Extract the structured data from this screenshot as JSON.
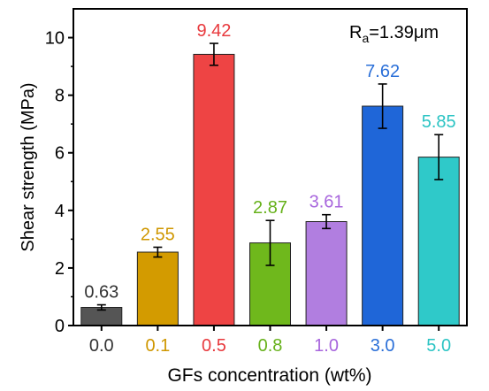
{
  "chart_data": {
    "type": "bar",
    "categories": [
      "0.0",
      "0.1",
      "0.5",
      "0.8",
      "1.0",
      "3.0",
      "5.0"
    ],
    "values": [
      0.63,
      2.55,
      9.42,
      2.87,
      3.61,
      7.62,
      5.85
    ],
    "errors": [
      0.09,
      0.17,
      0.38,
      0.78,
      0.24,
      0.77,
      0.78
    ],
    "value_labels": [
      "0.63",
      "2.55",
      "9.42",
      "2.87",
      "3.61",
      "7.62",
      "5.85"
    ],
    "colors": [
      "#555555",
      "#d39b00",
      "#ee4444",
      "#6fb81c",
      "#b17ee0",
      "#1f66d8",
      "#2fc9c9"
    ],
    "label_colors": [
      "#333333",
      "#cf9700",
      "#e8393d",
      "#66b11a",
      "#a866dd",
      "#2a6fd8",
      "#2cc4c4"
    ],
    "xlabel": "GFs concentration (wt%)",
    "ylabel": "Shear strength (MPa)",
    "ylim": [
      0,
      11
    ],
    "yticks": [
      0,
      2,
      4,
      6,
      8,
      10
    ],
    "annotation": {
      "prefix": "R",
      "subscript": "a",
      "suffix": "=1.39μm"
    },
    "grid": false,
    "legend": "none"
  }
}
